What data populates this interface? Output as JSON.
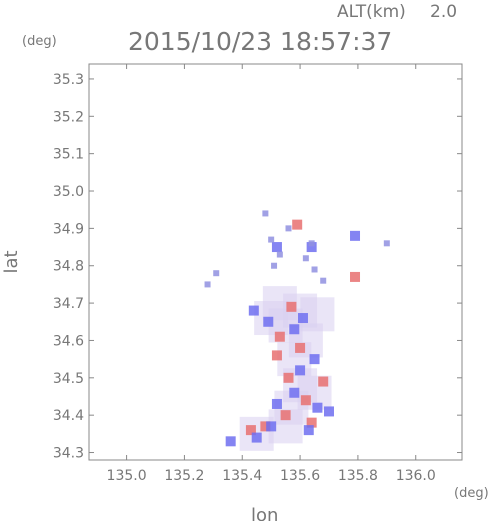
{
  "chart_data": {
    "type": "scatter",
    "header_alt_label": "ALT(km)",
    "header_alt_value": "2.0",
    "title": "2015/10/23 18:57:37",
    "y_unit": "(deg)",
    "x_unit": "(deg)",
    "xlabel": "lon",
    "ylabel": "lat",
    "xlim": [
      134.87,
      136.16
    ],
    "ylim": [
      34.28,
      35.34
    ],
    "x_ticks": [
      "135.0",
      "135.2",
      "135.4",
      "135.6",
      "135.8",
      "136.0"
    ],
    "y_ticks": [
      "34.3",
      "34.4",
      "34.5",
      "34.6",
      "34.7",
      "34.8",
      "34.9",
      "35.0",
      "35.1",
      "35.2",
      "35.3"
    ],
    "grid": false,
    "colors": {
      "axis": "#888888",
      "text": "#777777",
      "positive": "#e87070",
      "negative": "#6f6ff0"
    },
    "clusters": [
      {
        "name": "main_echo",
        "color": "#d8d0f0",
        "points": [
          [
            135.53,
            34.7
          ],
          [
            135.6,
            34.68
          ],
          [
            135.55,
            34.64
          ],
          [
            135.62,
            34.6
          ],
          [
            135.58,
            34.55
          ],
          [
            135.6,
            34.48
          ],
          [
            135.57,
            34.42
          ],
          [
            135.55,
            34.37
          ],
          [
            135.45,
            34.35
          ],
          [
            135.65,
            34.46
          ],
          [
            135.5,
            34.66
          ],
          [
            135.66,
            34.67
          ]
        ]
      },
      {
        "name": "positive_cells",
        "color": "#e87070",
        "points": [
          [
            135.57,
            34.69
          ],
          [
            135.53,
            34.61
          ],
          [
            135.6,
            34.58
          ],
          [
            135.56,
            34.5
          ],
          [
            135.62,
            34.44
          ],
          [
            135.55,
            34.4
          ],
          [
            135.64,
            34.38
          ],
          [
            135.43,
            34.36
          ],
          [
            135.48,
            34.37
          ],
          [
            135.68,
            34.49
          ],
          [
            135.59,
            34.91
          ],
          [
            135.79,
            34.77
          ],
          [
            135.52,
            34.56
          ]
        ]
      },
      {
        "name": "negative_cells",
        "color": "#6f6ff0",
        "points": [
          [
            135.49,
            34.65
          ],
          [
            135.61,
            34.66
          ],
          [
            135.58,
            34.63
          ],
          [
            135.65,
            34.55
          ],
          [
            135.6,
            34.52
          ],
          [
            135.58,
            34.46
          ],
          [
            135.66,
            34.42
          ],
          [
            135.52,
            34.43
          ],
          [
            135.5,
            34.37
          ],
          [
            135.63,
            34.36
          ],
          [
            135.45,
            34.34
          ],
          [
            135.7,
            34.41
          ],
          [
            135.52,
            34.85
          ],
          [
            135.64,
            34.85
          ],
          [
            135.79,
            34.88
          ],
          [
            135.36,
            34.33
          ],
          [
            135.44,
            34.68
          ]
        ]
      },
      {
        "name": "north_fragments",
        "color": "#9090e0",
        "points": [
          [
            135.5,
            34.87
          ],
          [
            135.53,
            34.83
          ],
          [
            135.51,
            34.8
          ],
          [
            135.62,
            34.82
          ],
          [
            135.65,
            34.79
          ],
          [
            135.68,
            34.76
          ],
          [
            135.64,
            34.86
          ],
          [
            135.9,
            34.86
          ],
          [
            135.56,
            34.9
          ],
          [
            135.48,
            34.94
          ],
          [
            135.28,
            34.75
          ],
          [
            135.31,
            34.78
          ]
        ]
      }
    ]
  }
}
